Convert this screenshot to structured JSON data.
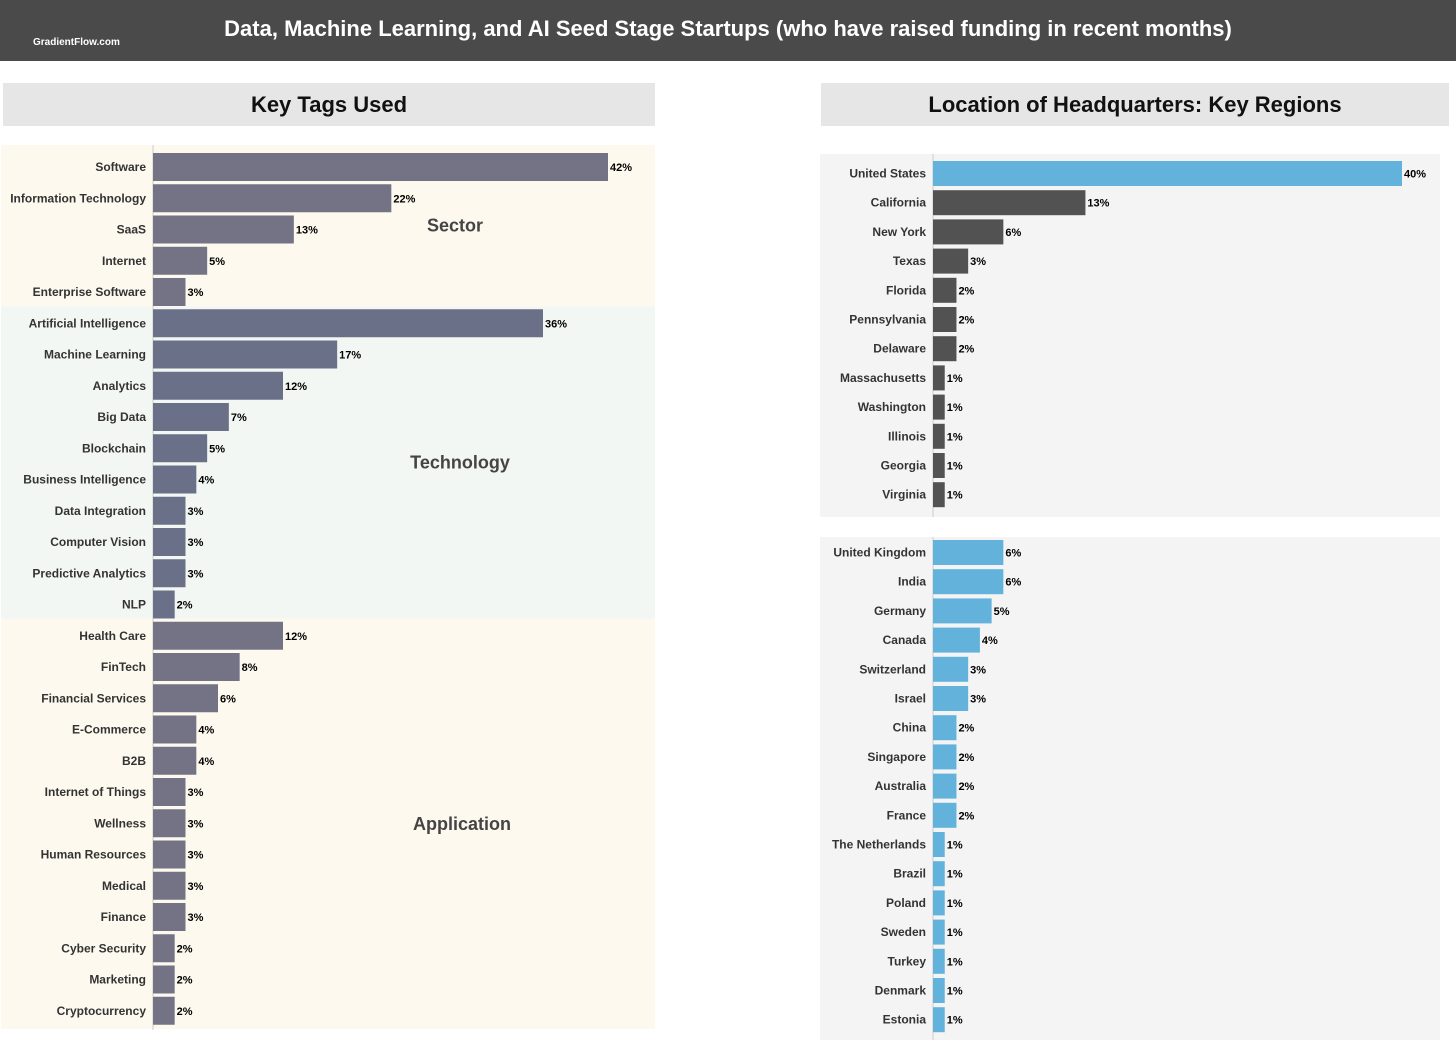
{
  "header": {
    "title": "Data, Machine Learning, and AI Seed Stage Startups (who have raised funding in recent months)",
    "brand": "GradientFlow.com"
  },
  "left_panel": {
    "title": "Key Tags Used"
  },
  "right_panel": {
    "title": "Location of Headquarters: Key Regions"
  },
  "colors": {
    "header_bg": "#4a4a4a",
    "panel_title_bg": "#e6e6e6",
    "sector_bg": "#fdf9ee",
    "technology_bg": "#f3f7f3",
    "application_bg": "#fdf9ee",
    "regions_bg": "#f4f4f4",
    "bar_purple_gray": "#747386",
    "bar_slate": "#6a7087",
    "bar_blue": "#62b2dc",
    "bar_dark": "#525252"
  },
  "chart_data": [
    {
      "type": "bar",
      "orientation": "horizontal",
      "title": "Key Tags Used",
      "value_unit": "%",
      "xlim": [
        0,
        42
      ],
      "groups": [
        {
          "name": "Sector",
          "color": "#747386",
          "categories": [
            "Software",
            "Information Technology",
            "SaaS",
            "Internet",
            "Enterprise Software"
          ],
          "values": [
            42,
            22,
            13,
            5,
            3
          ]
        },
        {
          "name": "Technology",
          "color": "#6a7087",
          "categories": [
            "Artificial Intelligence",
            "Machine Learning",
            "Analytics",
            "Big Data",
            "Blockchain",
            "Business Intelligence",
            "Data Integration",
            "Computer Vision",
            "Predictive Analytics",
            "NLP"
          ],
          "values": [
            36,
            17,
            12,
            7,
            5,
            4,
            3,
            3,
            3,
            2
          ]
        },
        {
          "name": "Application",
          "color": "#747386",
          "categories": [
            "Health Care",
            "FinTech",
            "Financial Services",
            "E-Commerce",
            "B2B",
            "Internet of Things",
            "Wellness",
            "Human Resources",
            "Medical",
            "Finance",
            "Cyber Security",
            "Marketing",
            "Cryptocurrency"
          ],
          "values": [
            12,
            8,
            6,
            4,
            4,
            3,
            3,
            3,
            3,
            3,
            2,
            2,
            2
          ]
        }
      ]
    },
    {
      "type": "bar",
      "orientation": "horizontal",
      "title": "Location of Headquarters: Key Regions",
      "value_unit": "%",
      "xlim": [
        0,
        40
      ],
      "groups": [
        {
          "name": "",
          "categories": [
            "United States",
            "California",
            "New York",
            "Texas",
            "Florida",
            "Pennsylvania",
            "Delaware",
            "Massachusetts",
            "Washington",
            "Illinois",
            "Georgia",
            "Virginia"
          ],
          "values": [
            40,
            13,
            6,
            3,
            2,
            2,
            2,
            1,
            1,
            1,
            1,
            1
          ],
          "colors": [
            "#62b2dc",
            "#525252",
            "#525252",
            "#525252",
            "#525252",
            "#525252",
            "#525252",
            "#525252",
            "#525252",
            "#525252",
            "#525252",
            "#525252"
          ]
        },
        {
          "name": "",
          "categories": [
            "United Kingdom",
            "India",
            "Germany",
            "Canada",
            "Switzerland",
            "Israel",
            "China",
            "Singapore",
            "Australia",
            "France",
            "The Netherlands",
            "Brazil",
            "Poland",
            "Sweden",
            "Turkey",
            "Denmark",
            "Estonia"
          ],
          "values": [
            6,
            6,
            5,
            4,
            3,
            3,
            2,
            2,
            2,
            2,
            1,
            1,
            1,
            1,
            1,
            1,
            1
          ],
          "colors": [
            "#62b2dc",
            "#62b2dc",
            "#62b2dc",
            "#62b2dc",
            "#62b2dc",
            "#62b2dc",
            "#62b2dc",
            "#62b2dc",
            "#62b2dc",
            "#62b2dc",
            "#62b2dc",
            "#62b2dc",
            "#62b2dc",
            "#62b2dc",
            "#62b2dc",
            "#62b2dc",
            "#62b2dc"
          ]
        }
      ]
    }
  ]
}
